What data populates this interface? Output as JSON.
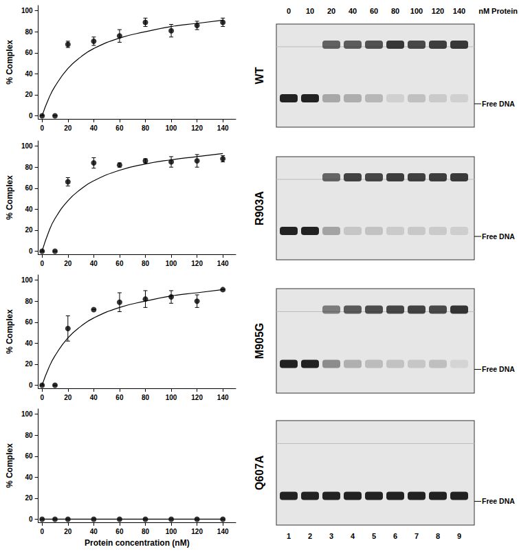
{
  "chart_data": [
    {
      "type": "scatter",
      "ylabel": "% Complex",
      "x": [
        0,
        10,
        20,
        40,
        60,
        80,
        100,
        120,
        140
      ],
      "series": [
        {
          "name": "WT",
          "color": "#000000",
          "marker": "circle",
          "values": [
            0,
            0,
            68,
            71,
            76,
            89,
            81,
            86,
            89
          ],
          "errors": [
            0,
            0,
            3,
            4,
            6,
            4,
            6,
            4,
            4
          ]
        }
      ],
      "fit": {
        "x": [
          0,
          5,
          10,
          20,
          30,
          40,
          60,
          80,
          100,
          120,
          140
        ],
        "values": [
          0,
          16,
          28,
          45,
          56,
          64,
          74,
          80,
          85,
          88,
          91
        ]
      },
      "xlim": [
        -3,
        150
      ],
      "ylim": [
        -3,
        105
      ],
      "xticks": [
        0,
        20,
        40,
        60,
        80,
        100,
        120,
        140
      ],
      "yticks": [
        0,
        20,
        40,
        60,
        80,
        100
      ]
    },
    {
      "type": "scatter",
      "ylabel": "% Complex",
      "x": [
        0,
        10,
        20,
        40,
        60,
        80,
        100,
        120,
        140
      ],
      "series": [
        {
          "name": "R903A",
          "color": "#000000",
          "marker": "circle",
          "values": [
            0,
            0,
            66,
            84,
            82,
            86,
            85,
            86,
            88
          ],
          "errors": [
            0,
            0,
            4,
            5,
            2,
            2,
            5,
            6,
            3
          ]
        }
      ],
      "fit": {
        "x": [
          0,
          5,
          10,
          20,
          30,
          40,
          60,
          80,
          100,
          120,
          140
        ],
        "values": [
          0,
          18,
          31,
          48,
          59,
          67,
          77,
          83,
          87,
          90,
          93
        ]
      },
      "xlim": [
        -3,
        150
      ],
      "ylim": [
        -3,
        105
      ],
      "xticks": [
        0,
        20,
        40,
        60,
        80,
        100,
        120,
        140
      ],
      "yticks": [
        0,
        20,
        40,
        60,
        80,
        100
      ]
    },
    {
      "type": "scatter",
      "ylabel": "% Complex",
      "x": [
        0,
        10,
        20,
        40,
        60,
        80,
        100,
        120,
        140
      ],
      "series": [
        {
          "name": "M905G",
          "color": "#000000",
          "marker": "circle",
          "values": [
            0,
            0,
            54,
            72,
            79,
            82,
            84,
            80,
            91
          ],
          "errors": [
            0,
            0,
            12,
            0,
            9,
            8,
            6,
            6,
            0
          ]
        }
      ],
      "fit": {
        "x": [
          0,
          5,
          10,
          20,
          30,
          40,
          60,
          80,
          100,
          120,
          140
        ],
        "values": [
          0,
          16,
          28,
          45,
          56,
          64,
          74,
          80,
          85,
          88,
          91
        ]
      },
      "xlim": [
        -3,
        150
      ],
      "ylim": [
        -3,
        105
      ],
      "xticks": [
        0,
        20,
        40,
        60,
        80,
        100,
        120,
        140
      ],
      "yticks": [
        0,
        20,
        40,
        60,
        80,
        100
      ]
    },
    {
      "type": "scatter",
      "ylabel": "% Complex",
      "xlabel": "Protein concentration (nM)",
      "x": [
        0,
        10,
        20,
        40,
        60,
        80,
        100,
        120,
        140
      ],
      "series": [
        {
          "name": "Q607A",
          "color": "#000000",
          "marker": "circle",
          "values": [
            0,
            0,
            0,
            0,
            0,
            0,
            0,
            0,
            0
          ],
          "errors": [
            0,
            0,
            0,
            0,
            0,
            0,
            0,
            0,
            0
          ]
        }
      ],
      "fit": {
        "x": [
          0,
          140
        ],
        "values": [
          0,
          0
        ]
      },
      "xlim": [
        -3,
        150
      ],
      "ylim": [
        -3,
        105
      ],
      "xticks": [
        0,
        20,
        40,
        60,
        80,
        100,
        120,
        140
      ],
      "yticks": [
        0,
        20,
        40,
        60,
        80,
        100
      ]
    }
  ],
  "gel": {
    "concentrations": [
      0,
      10,
      20,
      40,
      60,
      80,
      100,
      120,
      140
    ],
    "unit": "nM Protein",
    "lanes": [
      1,
      2,
      3,
      4,
      5,
      6,
      7,
      8,
      9
    ],
    "band_label": "Free DNA"
  }
}
